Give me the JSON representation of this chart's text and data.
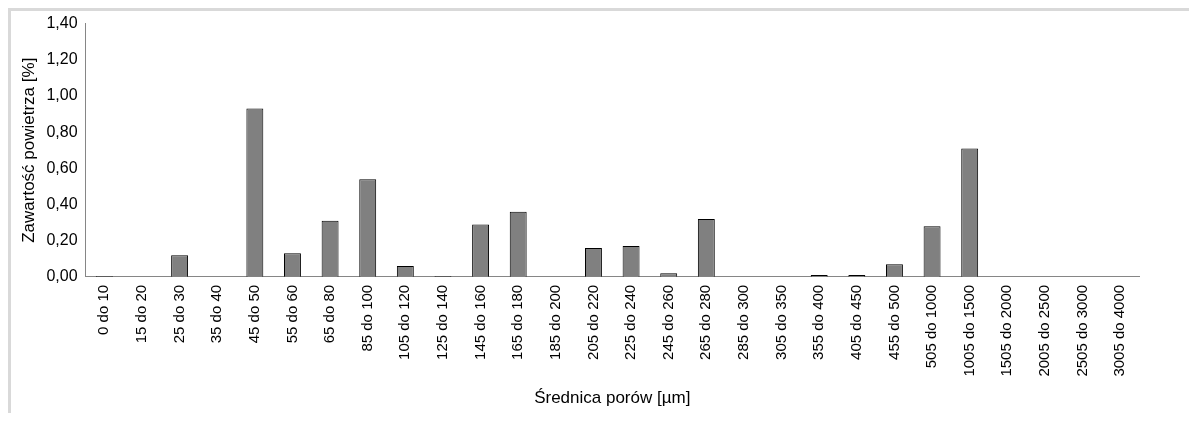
{
  "chart_data": {
    "type": "bar",
    "xlabel": "Średnica porów [µm]",
    "ylabel": "Zawartość powietrza [%]",
    "categories": [
      "0 do 10",
      "15 do 20",
      "25 do 30",
      "35 do 40",
      "45 do 50",
      "55 do 60",
      "65 do 80",
      "85 do 100",
      "105 do 120",
      "125 do 140",
      "145 do 160",
      "165 do 180",
      "185 do 200",
      "205 do 220",
      "225 do 240",
      "245 do 260",
      "265 do 280",
      "285 do 300",
      "305 do 350",
      "355 do 400",
      "405 do 450",
      "455 do 500",
      "505 do 1000",
      "1005 do 1500",
      "1505 do 2000",
      "2005 do 2500",
      "2505 do 3000",
      "3005 do 4000"
    ],
    "values": [
      0.005,
      0,
      0.12,
      0,
      0.93,
      0.13,
      0.31,
      0.54,
      0.06,
      0.005,
      0.29,
      0.36,
      0,
      0.16,
      0.17,
      0.02,
      0.32,
      0,
      0,
      0.01,
      0.01,
      0.07,
      0.28,
      0.71,
      0,
      0,
      0,
      0
    ],
    "color": "#808080",
    "ylim": [
      0,
      1.4
    ],
    "yticks": [
      {
        "value": 0,
        "label": "0,00"
      },
      {
        "value": 0.2,
        "label": "0,20"
      },
      {
        "value": 0.4,
        "label": "0,40"
      },
      {
        "value": 0.6,
        "label": "0,60"
      },
      {
        "value": 0.8,
        "label": "0,80"
      },
      {
        "value": 1,
        "label": "1,00"
      },
      {
        "value": 1.2,
        "label": "1,20"
      },
      {
        "value": 1.4,
        "label": "1,40"
      }
    ],
    "grid": false,
    "legend": false
  }
}
